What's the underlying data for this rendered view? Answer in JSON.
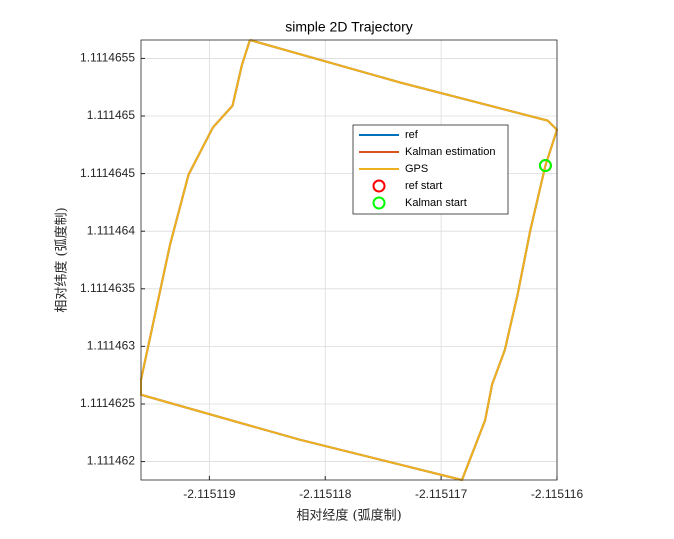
{
  "chart_data": {
    "type": "line",
    "title": "simple 2D Trajectory",
    "x_label": "相对经度 (弧度制)",
    "y_label": "相对纬度 (弧度制)",
    "xlim": [
      -2.11511959,
      -2.115116
    ],
    "ylim": [
      1.11146184,
      1.11146566
    ],
    "xticks": [
      -2.115119,
      -2.115118,
      -2.115117,
      -2.115116
    ],
    "yticks": [
      1.111462,
      1.1114625,
      1.111463,
      1.1114635,
      1.111464,
      1.1114645,
      1.111465,
      1.1114655
    ],
    "grid": true,
    "legend": true,
    "series": [
      {
        "name": "ref",
        "color": "#0072bd",
        "style": "line",
        "x": [
          -2.11511865,
          -2.11511735,
          -2.11511608,
          -2.115116,
          -2.1151161,
          -2.11511623,
          -2.11511634,
          -2.11511645,
          -2.11511656,
          -2.11511662,
          -2.11511682,
          -2.11511822,
          -2.11511959,
          -2.11511959,
          -2.11511934,
          -2.11511918,
          -2.11511897,
          -2.1151188,
          -2.11511872,
          -2.11511865
        ],
        "y": [
          1.11146566,
          1.11146529,
          1.11146496,
          1.11146488,
          1.11146457,
          1.11146401,
          1.11146345,
          1.11146297,
          1.11146267,
          1.11146236,
          1.11146184,
          1.11146219,
          1.11146258,
          1.11146271,
          1.11146388,
          1.11146449,
          1.1114649,
          1.11146509,
          1.11146544,
          1.11146566
        ]
      },
      {
        "name": "Kalman estimation",
        "color": "#d95319",
        "style": "line",
        "x": [
          -2.11511865,
          -2.11511735,
          -2.11511608,
          -2.115116,
          -2.1151161,
          -2.11511623,
          -2.11511634,
          -2.11511645,
          -2.11511656,
          -2.11511662,
          -2.11511682,
          -2.11511822,
          -2.11511959,
          -2.11511959,
          -2.11511934,
          -2.11511918,
          -2.11511897,
          -2.1151188,
          -2.11511872,
          -2.11511865
        ],
        "y": [
          1.11146566,
          1.11146529,
          1.11146496,
          1.11146488,
          1.11146457,
          1.11146401,
          1.11146345,
          1.11146297,
          1.11146267,
          1.11146236,
          1.11146184,
          1.11146219,
          1.11146258,
          1.11146271,
          1.11146388,
          1.11146449,
          1.1114649,
          1.11146509,
          1.11146544,
          1.11146566
        ]
      },
      {
        "name": "GPS",
        "color": "#edb120",
        "style": "line",
        "x": [
          -2.11511865,
          -2.11511735,
          -2.11511608,
          -2.115116,
          -2.1151161,
          -2.11511623,
          -2.11511634,
          -2.11511645,
          -2.11511656,
          -2.11511662,
          -2.11511682,
          -2.11511822,
          -2.11511959,
          -2.11511959,
          -2.11511934,
          -2.11511918,
          -2.11511897,
          -2.1151188,
          -2.11511872,
          -2.11511865
        ],
        "y": [
          1.11146566,
          1.11146529,
          1.11146496,
          1.11146488,
          1.11146457,
          1.11146401,
          1.11146345,
          1.11146297,
          1.11146267,
          1.11146236,
          1.11146184,
          1.11146219,
          1.11146258,
          1.11146271,
          1.11146388,
          1.11146449,
          1.1114649,
          1.11146509,
          1.11146544,
          1.11146566
        ]
      },
      {
        "name": "ref start",
        "color": "#ff0000",
        "style": "marker",
        "x": [
          -2.1151161
        ],
        "y": [
          1.11146457
        ]
      },
      {
        "name": "Kalman start",
        "color": "#00ff00",
        "style": "marker",
        "x": [
          -2.1151161
        ],
        "y": [
          1.11146457
        ]
      }
    ]
  }
}
